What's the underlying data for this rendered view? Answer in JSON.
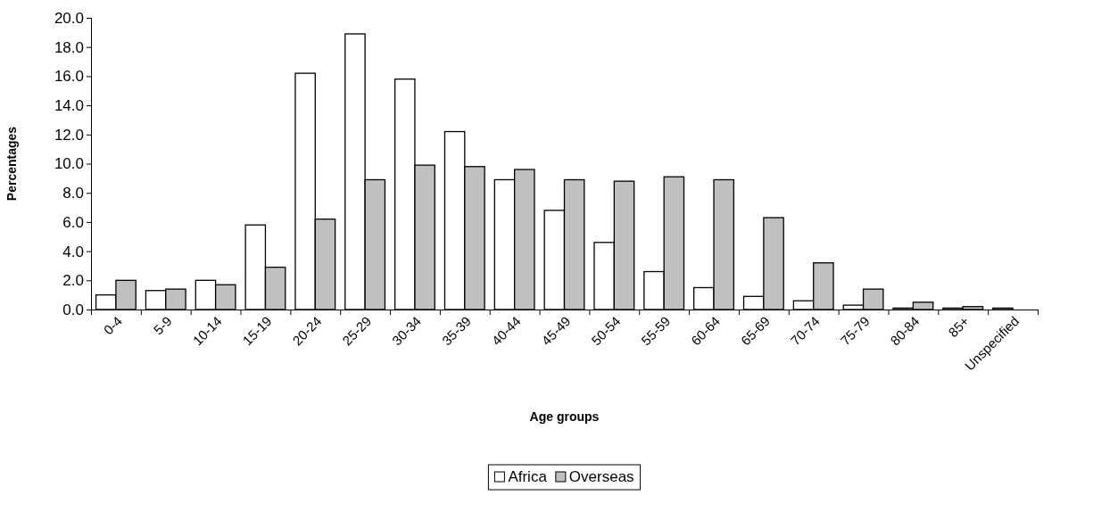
{
  "chart_data": {
    "type": "bar",
    "xlabel": "Age groups",
    "ylabel": "Percentages",
    "categories": [
      "0-4",
      "5-9",
      "10-14",
      "15-19",
      "20-24",
      "25-29",
      "30-34",
      "35-39",
      "40-44",
      "45-49",
      "50-54",
      "55-59",
      "60-64",
      "65-69",
      "70-74",
      "75-79",
      "80-84",
      "85+",
      "Unspecified"
    ],
    "series": [
      {
        "name": "Africa",
        "color": "#ffffff",
        "values": [
          1.0,
          1.3,
          2.0,
          5.8,
          16.2,
          18.9,
          15.8,
          12.2,
          8.9,
          6.8,
          4.6,
          2.6,
          1.5,
          0.9,
          0.6,
          0.3,
          0.1,
          0.1,
          0.1
        ]
      },
      {
        "name": "Overseas",
        "color": "#c0c0c0",
        "values": [
          2.0,
          1.4,
          1.7,
          2.9,
          6.2,
          8.9,
          9.9,
          9.8,
          9.6,
          8.9,
          8.8,
          9.1,
          8.9,
          6.3,
          3.2,
          1.4,
          0.5,
          0.2,
          0.0
        ]
      }
    ],
    "ylim": [
      0,
      20
    ],
    "yticks": [
      {
        "value": 0,
        "label": "0.0"
      },
      {
        "value": 2,
        "label": "2.0"
      },
      {
        "value": 4,
        "label": "4.0"
      },
      {
        "value": 6,
        "label": "6.0"
      },
      {
        "value": 8,
        "label": "8.0"
      },
      {
        "value": 10,
        "label": "10.0"
      },
      {
        "value": 12,
        "label": "12.0"
      },
      {
        "value": 14,
        "label": "14.0"
      },
      {
        "value": 16,
        "label": "16.0"
      },
      {
        "value": 18,
        "label": "18.0"
      },
      {
        "value": 20,
        "label": "20.0"
      }
    ],
    "grid": false,
    "legend": "bottom"
  }
}
